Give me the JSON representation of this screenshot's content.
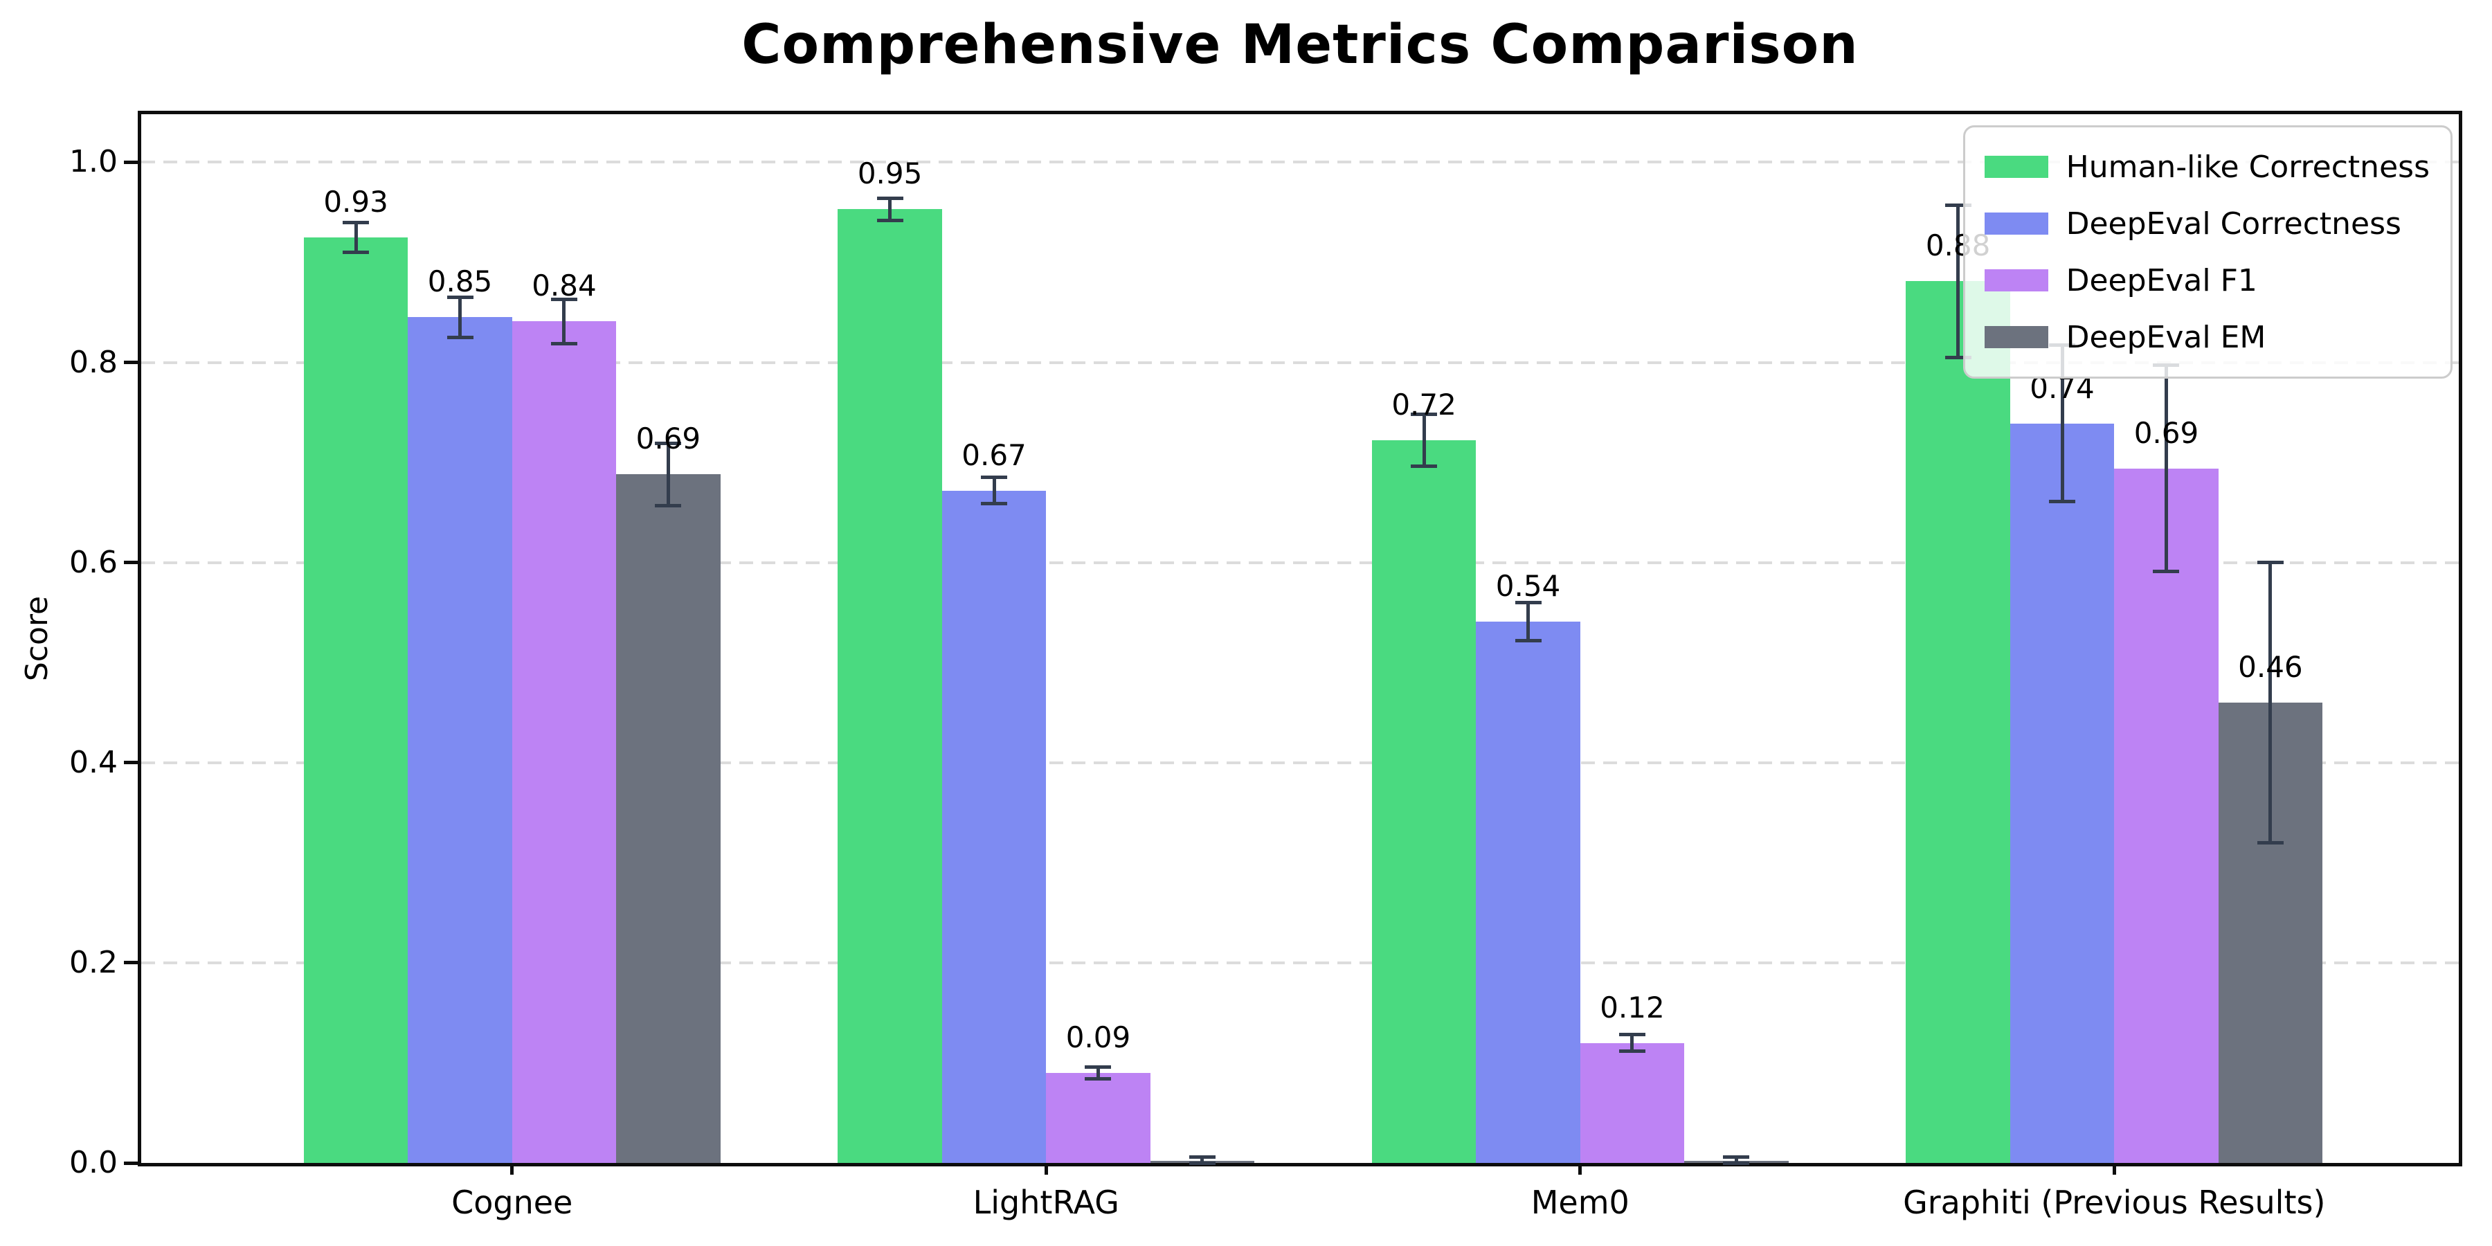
{
  "title": "Comprehensive Metrics Comparison",
  "axes": {
    "ylabel": "Score",
    "ytick_labels": [
      "0.0",
      "0.2",
      "0.4",
      "0.6",
      "0.8",
      "1.0"
    ]
  },
  "colors": {
    "human_like_correctness": "#4ada80",
    "deepeval_correctness": "#7e8bf2",
    "deepeval_f1": "#bd83f4",
    "deepeval_em": "#6c727e",
    "error_bar": "#333d4d",
    "gridline": "#dcdcdc",
    "spine": "#0d0d0d",
    "legend_border": "#cccccc"
  },
  "chart_data": {
    "type": "bar",
    "title": "Comprehensive Metrics Comparison",
    "xlabel": "",
    "ylabel": "Score",
    "categories": [
      "Cognee",
      "LightRAG",
      "Mem0",
      "Graphiti (Previous Results)"
    ],
    "series": [
      {
        "name": "Human-like Correctness",
        "color": "#4ada80",
        "values": [
          0.925,
          0.953,
          0.722,
          0.881
        ],
        "errors": [
          0.015,
          0.011,
          0.026,
          0.076
        ],
        "bar_labels": [
          "0.93",
          "0.95",
          "0.72",
          "0.88"
        ]
      },
      {
        "name": "DeepEval Correctness",
        "color": "#7e8bf2",
        "values": [
          0.845,
          0.672,
          0.541,
          0.739
        ],
        "errors": [
          0.02,
          0.013,
          0.019,
          0.078
        ],
        "bar_labels": [
          "0.85",
          "0.67",
          "0.54",
          "0.74"
        ]
      },
      {
        "name": "DeepEval F1",
        "color": "#bd83f4",
        "values": [
          0.841,
          0.09,
          0.12,
          0.694
        ],
        "errors": [
          0.022,
          0.006,
          0.008,
          0.103
        ],
        "bar_labels": [
          "0.84",
          "0.09",
          "0.12",
          "0.69"
        ]
      },
      {
        "name": "DeepEval EM",
        "color": "#6c727e",
        "values": [
          0.688,
          0.002,
          0.002,
          0.46
        ],
        "errors": [
          0.031,
          0.004,
          0.004,
          0.14
        ],
        "bar_labels": [
          "0.69",
          null,
          null,
          "0.46"
        ]
      }
    ],
    "yticks": [
      0.0,
      0.2,
      0.4,
      0.6,
      0.8,
      1.0
    ],
    "ylim": [
      0,
      1.048
    ],
    "grid": "horizontal-dashed",
    "legend_position": "upper-right",
    "bar_value_labels_shown": true
  }
}
